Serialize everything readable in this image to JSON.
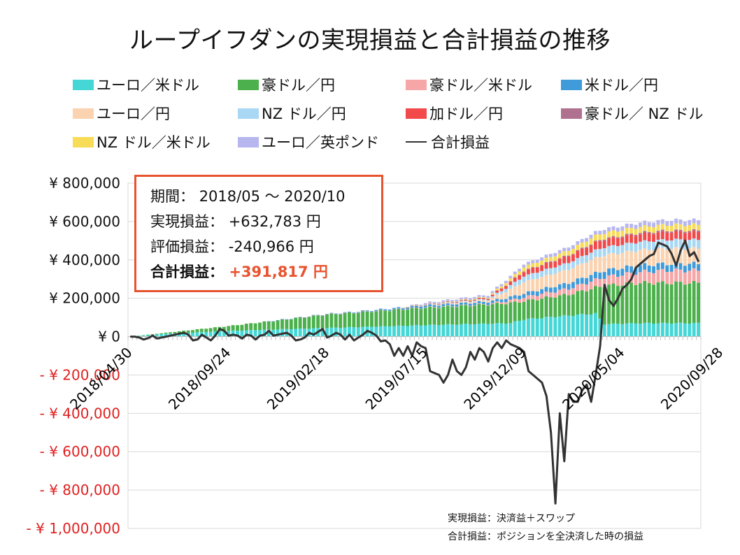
{
  "title": "ループイフダンの実現損益と合計損益の推移",
  "legend": [
    {
      "label": "ユーロ／米ドル",
      "color": "#45d6d6"
    },
    {
      "label": "豪ドル／円",
      "color": "#4cb04c"
    },
    {
      "label": "豪ドル／米ドル",
      "color": "#f6a6a6"
    },
    {
      "label": "米ドル／円",
      "color": "#3f9bd9"
    },
    {
      "label": "ユーロ／円",
      "color": "#fbd3b0"
    },
    {
      "label": "NZ ドル／円",
      "color": "#a8d8f4"
    },
    {
      "label": "加ドル／円",
      "color": "#f24a4a"
    },
    {
      "label": "豪ドル／ NZ ドル",
      "color": "#b07090"
    },
    {
      "label": "NZ ドル／米ドル",
      "color": "#f7dc58"
    },
    {
      "label": "ユーロ／英ポンド",
      "color": "#b7b6ef"
    },
    {
      "label": "合計損益",
      "color": "#333333"
    }
  ],
  "info": {
    "period_label": "期間：",
    "period_value": "2018/05 ～ 2020/10",
    "realized_label": "実現損益：",
    "realized_value": "+632,783 円",
    "unrealized_label": "評価損益：",
    "unrealized_value": "-240,966 円",
    "total_label": "合計損益：",
    "total_value": "+391,817 円"
  },
  "notes": [
    "実現損益：決済益＋スワップ",
    "合計損益：ポジションを全決済した時の損益"
  ],
  "chart_data": {
    "type": "bar",
    "stacked": true,
    "x_start": "2018/04/30",
    "x_interval_weeks": 1,
    "x_ticks": [
      "2018/04/30",
      "2018/09/24",
      "2019/02/18",
      "2019/07/15",
      "2019/12/09",
      "2020/05/04",
      "2020/09/28"
    ],
    "ylim": [
      -1000000,
      800000
    ],
    "y_ticks": [
      {
        "value": 800000,
        "label": "¥ 800,000",
        "color": "#111111"
      },
      {
        "value": 600000,
        "label": "¥ 600,000",
        "color": "#111111"
      },
      {
        "value": 400000,
        "label": "¥ 400,000",
        "color": "#111111"
      },
      {
        "value": 200000,
        "label": "¥ 200,000",
        "color": "#111111"
      },
      {
        "value": 0,
        "label": "¥ 0",
        "color": "#111111"
      },
      {
        "value": -200000,
        "label": "- ¥ 200,000",
        "color": "#e02020"
      },
      {
        "value": -400000,
        "label": "- ¥ 400,000",
        "color": "#e02020"
      },
      {
        "value": -600000,
        "label": "- ¥ 600,000",
        "color": "#e02020"
      },
      {
        "value": -800000,
        "label": "- ¥ 800,000",
        "color": "#e02020"
      },
      {
        "value": -1000000,
        "label": "- ¥ 1,000,000",
        "color": "#e02020"
      }
    ],
    "grid": true,
    "legend_position": "top",
    "series_keypoints": [
      {
        "name": "ユーロ／米ドル",
        "points": [
          [
            0,
            0
          ],
          [
            8,
            15000
          ],
          [
            22,
            30000
          ],
          [
            44,
            45000
          ],
          [
            66,
            60000
          ],
          [
            85,
            70000
          ],
          [
            88,
            90000
          ],
          [
            98,
            110000
          ],
          [
            104,
            120000
          ],
          [
            106,
            65000
          ],
          [
            114,
            70000
          ],
          [
            120,
            70000
          ]
        ]
      },
      {
        "name": "豪ドル／円",
        "points": [
          [
            0,
            0
          ],
          [
            8,
            5000
          ],
          [
            22,
            25000
          ],
          [
            44,
            70000
          ],
          [
            66,
            90000
          ],
          [
            80,
            100000
          ],
          [
            85,
            105000
          ],
          [
            88,
            95000
          ],
          [
            98,
            110000
          ],
          [
            104,
            135000
          ],
          [
            106,
            200000
          ],
          [
            114,
            210000
          ],
          [
            120,
            210000
          ]
        ]
      },
      {
        "name": "豪ドル／米ドル",
        "points": [
          [
            0,
            0
          ],
          [
            30,
            0
          ],
          [
            44,
            1000
          ],
          [
            66,
            2000
          ],
          [
            80,
            3000
          ],
          [
            88,
            20000
          ],
          [
            98,
            30000
          ],
          [
            104,
            40000
          ],
          [
            106,
            45000
          ],
          [
            120,
            65000
          ]
        ]
      },
      {
        "name": "米ドル／円",
        "points": [
          [
            0,
            0
          ],
          [
            30,
            0
          ],
          [
            50,
            3000
          ],
          [
            66,
            10000
          ],
          [
            80,
            12000
          ],
          [
            88,
            20000
          ],
          [
            98,
            30000
          ],
          [
            104,
            35000
          ],
          [
            120,
            35000
          ]
        ]
      },
      {
        "name": "ユーロ／円",
        "points": [
          [
            0,
            0
          ],
          [
            60,
            0
          ],
          [
            66,
            2000
          ],
          [
            80,
            8000
          ],
          [
            88,
            60000
          ],
          [
            98,
            70000
          ],
          [
            104,
            80000
          ],
          [
            120,
            80000
          ]
        ]
      },
      {
        "name": "NZ ドル／円",
        "points": [
          [
            0,
            0
          ],
          [
            60,
            0
          ],
          [
            66,
            1000
          ],
          [
            80,
            5000
          ],
          [
            88,
            30000
          ],
          [
            98,
            35000
          ],
          [
            104,
            40000
          ],
          [
            120,
            45000
          ]
        ]
      },
      {
        "name": "加ドル／円",
        "points": [
          [
            0,
            0
          ],
          [
            60,
            0
          ],
          [
            66,
            1000
          ],
          [
            80,
            5000
          ],
          [
            88,
            25000
          ],
          [
            98,
            35000
          ],
          [
            104,
            40000
          ],
          [
            120,
            40000
          ]
        ]
      },
      {
        "name": "豪ドル／ NZ ドル",
        "points": [
          [
            0,
            0
          ],
          [
            60,
            0
          ],
          [
            80,
            2000
          ],
          [
            104,
            5000
          ],
          [
            120,
            8000
          ]
        ]
      },
      {
        "name": "NZ ドル／米ドル",
        "points": [
          [
            0,
            0
          ],
          [
            60,
            0
          ],
          [
            66,
            1000
          ],
          [
            80,
            5000
          ],
          [
            88,
            20000
          ],
          [
            98,
            25000
          ],
          [
            104,
            30000
          ],
          [
            120,
            30000
          ]
        ]
      },
      {
        "name": "ユーロ／英ポンド",
        "points": [
          [
            0,
            0
          ],
          [
            60,
            0
          ],
          [
            66,
            8000
          ],
          [
            80,
            10000
          ],
          [
            88,
            15000
          ],
          [
            104,
            20000
          ],
          [
            120,
            25000
          ]
        ]
      }
    ],
    "total_line": {
      "name": "合計損益",
      "values": [
        0,
        0,
        -5000,
        -15000,
        -8000,
        5000,
        -10000,
        -5000,
        0,
        5000,
        10000,
        15000,
        20000,
        10000,
        -20000,
        -15000,
        10000,
        -5000,
        -20000,
        5000,
        40000,
        30000,
        5000,
        10000,
        5000,
        -10000,
        10000,
        5000,
        -15000,
        5000,
        10000,
        30000,
        5000,
        10000,
        15000,
        20000,
        5000,
        -20000,
        -15000,
        -5000,
        20000,
        10000,
        25000,
        40000,
        -5000,
        5000,
        20000,
        10000,
        -15000,
        10000,
        -20000,
        -5000,
        10000,
        30000,
        20000,
        5000,
        -25000,
        -20000,
        -40000,
        -100000,
        -60000,
        -100000,
        -50000,
        -100000,
        -30000,
        -50000,
        -60000,
        -180000,
        -190000,
        -200000,
        -240000,
        -200000,
        -120000,
        -180000,
        -200000,
        -160000,
        -80000,
        -120000,
        -60000,
        -80000,
        -130000,
        -60000,
        -30000,
        -60000,
        -20000,
        -40000,
        -50000,
        -60000,
        -80000,
        -180000,
        -200000,
        -220000,
        -240000,
        -310000,
        -500000,
        -870000,
        -400000,
        -650000,
        -300000,
        -340000,
        -340000,
        -280000,
        -250000,
        -340000,
        -200000,
        -50000,
        270000,
        190000,
        160000,
        200000,
        250000,
        270000,
        300000,
        360000,
        380000,
        400000,
        420000,
        430000,
        490000,
        480000,
        470000,
        430000,
        370000,
        450000,
        500000,
        420000,
        440000,
        390000
      ]
    }
  }
}
